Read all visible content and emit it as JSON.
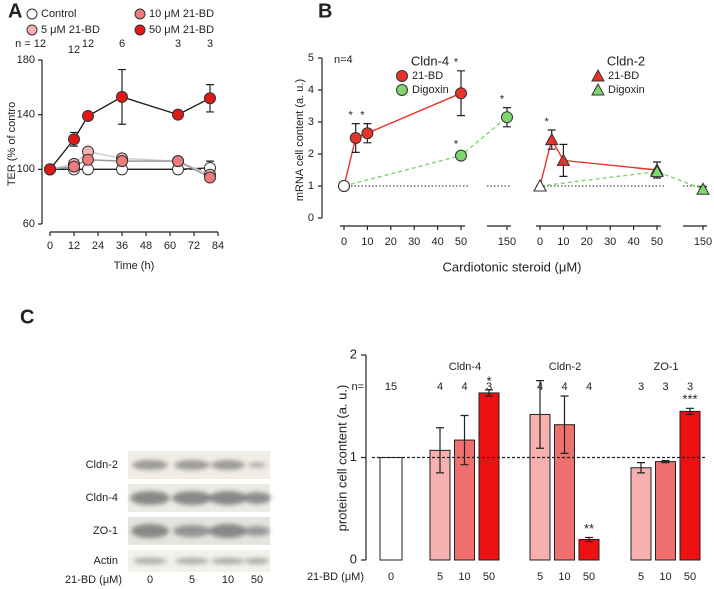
{
  "chart_data": [
    {
      "type": "line",
      "label": "A",
      "ylabel": "TER (% of contro",
      "xlabel": "Time (h)",
      "x": [
        0,
        12,
        19,
        36,
        64,
        80
      ],
      "xlim": [
        -4,
        90
      ],
      "xticks": [
        0,
        12,
        24,
        36,
        48,
        60,
        72,
        84
      ],
      "ylim": [
        60,
        180
      ],
      "yticks": [
        60,
        100,
        140,
        180
      ],
      "hline": 100,
      "n_labels": [
        "n = 12",
        "12",
        "12",
        "6",
        "3",
        "3"
      ],
      "series": [
        {
          "name": "Control",
          "color": "#ffffff",
          "line_color": "#222222",
          "values": [
            100,
            100,
            100,
            100,
            100,
            101
          ],
          "errors": [
            0,
            0,
            0,
            0,
            0,
            5
          ]
        },
        {
          "name": "5 μM 21-BD",
          "color": "#f5b3b3",
          "line_color": "#cccccc",
          "values": [
            100,
            104,
            113,
            108,
            106,
            96
          ],
          "errors": [
            0,
            2,
            3,
            2,
            2,
            2
          ]
        },
        {
          "name": "10 μM 21-BD",
          "color": "#ef7c7c",
          "line_color": "#999999",
          "values": [
            100,
            102,
            107,
            106,
            106,
            94
          ],
          "errors": [
            0,
            2,
            3,
            2,
            2,
            2
          ]
        },
        {
          "name": "50 μM 21-BD",
          "color": "#e01818",
          "line_color": "#222222",
          "values": [
            100,
            122,
            139,
            153,
            140,
            152
          ],
          "errors": [
            0,
            5,
            2,
            20,
            1,
            10
          ]
        }
      ]
    },
    {
      "type": "line",
      "label": "B",
      "ylabel": "mRNA cell content (a. u.)",
      "xlabel": "Cardiotonic steroid (μM)",
      "ylim": [
        0,
        5
      ],
      "yticks": [
        0,
        1,
        2,
        3,
        4,
        5
      ],
      "xticks": [
        0,
        10,
        20,
        30,
        40,
        50,
        150
      ],
      "x_break": [
        50,
        150
      ],
      "hline": 1,
      "annotation": "n=4",
      "panels": [
        {
          "title": "Cldn-4",
          "marker": "circle",
          "series": [
            {
              "name": "21-BD",
              "color": "#e8332a",
              "x": [
                0,
                5,
                10,
                50
              ],
              "values": [
                1,
                2.5,
                2.65,
                3.9
              ],
              "errors": [
                0,
                0.45,
                0.3,
                0.7
              ],
              "stars": [
                null,
                "*",
                "*",
                "*"
              ]
            },
            {
              "name": "Digoxin",
              "color": "#7fd66f",
              "x": [
                0,
                50,
                150
              ],
              "values": [
                1,
                1.95,
                3.15
              ],
              "errors": [
                0,
                0.1,
                0.3
              ],
              "stars": [
                null,
                "*",
                "*"
              ]
            }
          ]
        },
        {
          "title": "Cldn-2",
          "marker": "triangle",
          "series": [
            {
              "name": "21-BD",
              "color": "#e8332a",
              "x": [
                0,
                5,
                10,
                50
              ],
              "values": [
                1,
                2.45,
                1.8,
                1.5
              ],
              "errors": [
                0,
                0.3,
                0.5,
                0.25
              ],
              "stars": [
                null,
                "*",
                null,
                null
              ]
            },
            {
              "name": "Digoxin",
              "color": "#7fd66f",
              "x": [
                0,
                50,
                150
              ],
              "values": [
                1,
                1.45,
                0.9
              ],
              "errors": [
                0,
                0.05,
                0.08
              ]
            }
          ]
        }
      ]
    },
    {
      "type": "bar",
      "label": "C",
      "ylabel": "protein cell content (a. u.)",
      "xlabel": "21-BD (μM)",
      "n_label": "n=",
      "ylim": [
        0,
        2
      ],
      "yticks": [
        0,
        1,
        2
      ],
      "hline": 1,
      "groups": [
        {
          "categories": [
            "0"
          ],
          "n": [
            "15"
          ],
          "values": [
            1
          ],
          "colors": [
            "#ffffff"
          ]
        },
        {
          "name": "Cldn-4",
          "categories": [
            "5",
            "10",
            "50"
          ],
          "n": [
            "4",
            "4",
            "3"
          ],
          "values": [
            1.07,
            1.17,
            1.63
          ],
          "errors": [
            0.22,
            0.24,
            0.03
          ],
          "colors": [
            "#f7b0b0",
            "#f07070",
            "#ee1111"
          ],
          "stars": [
            null,
            null,
            "*"
          ]
        },
        {
          "name": "Cldn-2",
          "categories": [
            "5",
            "10",
            "50"
          ],
          "n": [
            "4",
            "4",
            "4"
          ],
          "values": [
            1.42,
            1.32,
            0.2
          ],
          "errors": [
            0.33,
            0.28,
            0.02
          ],
          "colors": [
            "#f7b0b0",
            "#f07070",
            "#ee1111"
          ],
          "stars": [
            null,
            null,
            "**"
          ]
        },
        {
          "name": "ZO-1",
          "categories": [
            "5",
            "10",
            "50"
          ],
          "n": [
            "3",
            "3",
            "3"
          ],
          "values": [
            0.9,
            0.96,
            1.45
          ],
          "errors": [
            0.05,
            0.01,
            0.03
          ],
          "colors": [
            "#f7b0b0",
            "#f07070",
            "#ee1111"
          ],
          "stars": [
            null,
            null,
            "***"
          ]
        }
      ]
    }
  ],
  "blot": {
    "rows": [
      "Cldn-2",
      "Cldn-4",
      "ZO-1",
      "Actin"
    ],
    "dose_label": "21-BD (μM)",
    "doses": [
      "0",
      "5",
      "10",
      "50"
    ]
  }
}
